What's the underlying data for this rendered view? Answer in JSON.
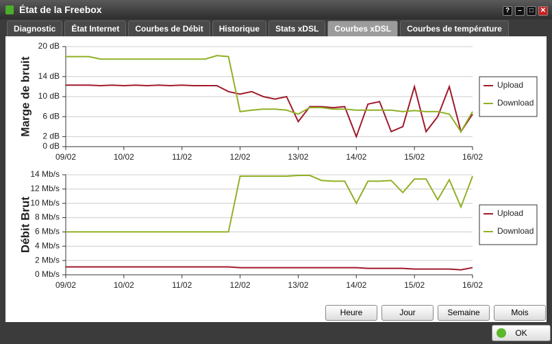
{
  "window": {
    "title": "État de la Freebox",
    "tabs": [
      "Diagnostic",
      "État Internet",
      "Courbes de Débit",
      "Historique",
      "Stats xDSL",
      "Courbes xDSL",
      "Courbes de température"
    ],
    "active_tab": 5,
    "buttons": [
      "Heure",
      "Jour",
      "Semaine",
      "Mois"
    ],
    "ok": "OK"
  },
  "chart_data": [
    {
      "type": "line",
      "y_label": "Marge de bruit",
      "legend": "right",
      "grid": true,
      "x": [
        0,
        0.2,
        0.4,
        0.6,
        0.8,
        1,
        1.2,
        1.4,
        1.6,
        1.8,
        2,
        2.2,
        2.4,
        2.6,
        2.8,
        3,
        3.2,
        3.4,
        3.6,
        3.8,
        4,
        4.2,
        4.4,
        4.6,
        4.8,
        5,
        5.2,
        5.4,
        5.6,
        5.8,
        6,
        6.2,
        6.4,
        6.6,
        6.8,
        7
      ],
      "xlim": [
        0,
        7
      ],
      "xticks": [
        {
          "value": 0,
          "label": "09/02"
        },
        {
          "value": 1,
          "label": "10/02"
        },
        {
          "value": 2,
          "label": "11/02"
        },
        {
          "value": 3,
          "label": "12/02"
        },
        {
          "value": 4,
          "label": "13/02"
        },
        {
          "value": 5,
          "label": "14/02"
        },
        {
          "value": 6,
          "label": "15/02"
        },
        {
          "value": 7,
          "label": "16/02"
        }
      ],
      "ylim": [
        0,
        20
      ],
      "yticks": [
        {
          "value": 0,
          "label": "0 dB"
        },
        {
          "value": 2,
          "label": "2 dB"
        },
        {
          "value": 6,
          "label": "6 dB"
        },
        {
          "value": 10,
          "label": "10 dB"
        },
        {
          "value": 14,
          "label": "14 dB"
        },
        {
          "value": 20,
          "label": "20 dB"
        }
      ],
      "series": [
        {
          "name": "Upload",
          "color": "#a0182a",
          "values": [
            12.3,
            12.3,
            12.3,
            12.2,
            12.3,
            12.2,
            12.3,
            12.2,
            12.3,
            12.2,
            12.3,
            12.2,
            12.2,
            12.2,
            11,
            10.5,
            11,
            10,
            9.5,
            10,
            5,
            8,
            8,
            7.8,
            8,
            2,
            8.5,
            9,
            3,
            4,
            12,
            3,
            6,
            12,
            3,
            6.5
          ]
        },
        {
          "name": "Download",
          "color": "#8fb024",
          "values": [
            18,
            18,
            18,
            17.5,
            17.5,
            17.5,
            17.5,
            17.5,
            17.5,
            17.5,
            17.5,
            17.5,
            17.5,
            18.2,
            18,
            7,
            7.3,
            7.5,
            7.5,
            7.3,
            6.5,
            7.8,
            7.8,
            7.5,
            7.5,
            7.3,
            7.3,
            7.3,
            7.3,
            7,
            7.2,
            7,
            7,
            6.5,
            3,
            7
          ]
        }
      ]
    },
    {
      "type": "line",
      "y_label": "Débit Brut",
      "legend": "right",
      "grid": true,
      "x": [
        0,
        0.2,
        0.4,
        0.6,
        0.8,
        1,
        1.2,
        1.4,
        1.6,
        1.8,
        2,
        2.2,
        2.4,
        2.6,
        2.8,
        3,
        3.2,
        3.4,
        3.6,
        3.8,
        4,
        4.2,
        4.4,
        4.6,
        4.8,
        5,
        5.2,
        5.4,
        5.6,
        5.8,
        6,
        6.2,
        6.4,
        6.6,
        6.8,
        7
      ],
      "xlim": [
        0,
        7
      ],
      "xticks": [
        {
          "value": 0,
          "label": "09/02"
        },
        {
          "value": 1,
          "label": "10/02"
        },
        {
          "value": 2,
          "label": "11/02"
        },
        {
          "value": 3,
          "label": "12/02"
        },
        {
          "value": 4,
          "label": "13/02"
        },
        {
          "value": 5,
          "label": "14/02"
        },
        {
          "value": 6,
          "label": "15/02"
        },
        {
          "value": 7,
          "label": "16/02"
        }
      ],
      "ylim": [
        0,
        14
      ],
      "yticks": [
        {
          "value": 0,
          "label": "0 Mb/s"
        },
        {
          "value": 2,
          "label": "2 Mb/s"
        },
        {
          "value": 4,
          "label": "4 Mb/s"
        },
        {
          "value": 6,
          "label": "6 Mb/s"
        },
        {
          "value": 8,
          "label": "8 Mb/s"
        },
        {
          "value": 10,
          "label": "10 Mb/s"
        },
        {
          "value": 12,
          "label": "12 Mb/s"
        },
        {
          "value": 14,
          "label": "14 Mb/s"
        }
      ],
      "series": [
        {
          "name": "Upload",
          "color": "#a0182a",
          "values": [
            1.1,
            1.1,
            1.1,
            1.1,
            1.1,
            1.1,
            1.1,
            1.1,
            1.1,
            1.1,
            1.1,
            1.1,
            1.1,
            1.1,
            1.1,
            1,
            1,
            1,
            1,
            1,
            1,
            1,
            1,
            1,
            1,
            1,
            0.9,
            0.9,
            0.9,
            0.9,
            0.8,
            0.8,
            0.8,
            0.8,
            0.7,
            1
          ]
        },
        {
          "name": "Download",
          "color": "#8fb024",
          "values": [
            6,
            6,
            6,
            6,
            6,
            6,
            6,
            6,
            6,
            6,
            6,
            6,
            6,
            6,
            6,
            13.8,
            13.8,
            13.8,
            13.8,
            13.8,
            13.9,
            13.9,
            13.2,
            13.1,
            13.1,
            10,
            13.1,
            13.1,
            13.2,
            11.5,
            13.4,
            13.4,
            10.5,
            13.3,
            9.5,
            13.8
          ]
        }
      ]
    }
  ]
}
